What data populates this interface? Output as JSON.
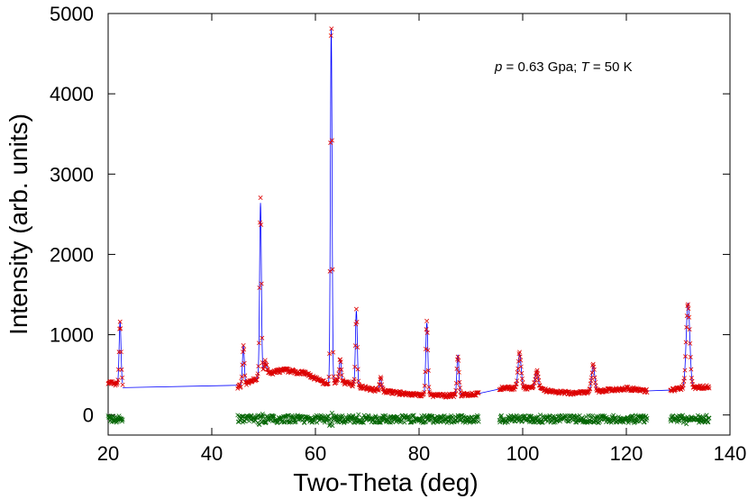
{
  "chart_data": {
    "type": "scatter",
    "title": "",
    "annotation": {
      "p_symbol": "p",
      "p_text": " = 0.63 Gpa; ",
      "t_symbol": "T",
      "t_text": " = 50 K"
    },
    "xlabel": "Two-Theta (deg)",
    "ylabel": "Intensity (arb. units)",
    "xlim": [
      20,
      140
    ],
    "ylim": [
      -250,
      5000
    ],
    "xticks": [
      20,
      40,
      60,
      80,
      100,
      120,
      140
    ],
    "yticks": [
      0,
      1000,
      2000,
      3000,
      4000,
      5000
    ],
    "grid": false,
    "legend": "none",
    "colors": {
      "observed": "#dd0000",
      "calculated": "#0000ff",
      "difference": "#006400"
    },
    "data_ranges": [
      [
        20,
        22.8
      ],
      [
        45,
        91.5
      ],
      [
        95.5,
        124
      ],
      [
        128.5,
        136
      ]
    ],
    "baseline_points": [
      [
        22.8,
        340
      ],
      [
        45,
        370
      ]
    ],
    "series": [
      {
        "role": "observed",
        "marker": "x",
        "background": [
          [
            20,
            410
          ],
          [
            22,
            380
          ],
          [
            45,
            350
          ],
          [
            47,
            400
          ],
          [
            50,
            500
          ],
          [
            54,
            560
          ],
          [
            58,
            520
          ],
          [
            61,
            420
          ],
          [
            62.5,
            380
          ],
          [
            64,
            420
          ],
          [
            66,
            400
          ],
          [
            70,
            330
          ],
          [
            75,
            280
          ],
          [
            80,
            250
          ],
          [
            85,
            240
          ],
          [
            91,
            260
          ],
          [
            96,
            330
          ],
          [
            100,
            340
          ],
          [
            103,
            320
          ],
          [
            106,
            290
          ],
          [
            110,
            270
          ],
          [
            115,
            300
          ],
          [
            120,
            330
          ],
          [
            124,
            300
          ],
          [
            128.5,
            310
          ],
          [
            132,
            340
          ],
          [
            136,
            350
          ]
        ],
        "peaks": [
          {
            "x": 22.3,
            "height": 780,
            "width": 0.18
          },
          {
            "x": 46.1,
            "height": 480,
            "width": 0.18
          },
          {
            "x": 49.4,
            "height": 2160,
            "width": 0.17
          },
          {
            "x": 50.3,
            "height": 150,
            "width": 0.3
          },
          {
            "x": 63.05,
            "height": 4420,
            "width": 0.16
          },
          {
            "x": 64.8,
            "height": 280,
            "width": 0.2
          },
          {
            "x": 67.9,
            "height": 930,
            "width": 0.18
          },
          {
            "x": 72.6,
            "height": 150,
            "width": 0.2
          },
          {
            "x": 81.5,
            "height": 900,
            "width": 0.2
          },
          {
            "x": 87.5,
            "height": 500,
            "width": 0.2
          },
          {
            "x": 99.4,
            "height": 420,
            "width": 0.3
          },
          {
            "x": 102.7,
            "height": 230,
            "width": 0.3
          },
          {
            "x": 113.6,
            "height": 320,
            "width": 0.3
          },
          {
            "x": 131.9,
            "height": 1050,
            "width": 0.35
          }
        ]
      },
      {
        "role": "calculated",
        "marker": "line"
      },
      {
        "role": "difference",
        "marker": "x",
        "offset": -50,
        "amplitude": 60
      }
    ]
  }
}
